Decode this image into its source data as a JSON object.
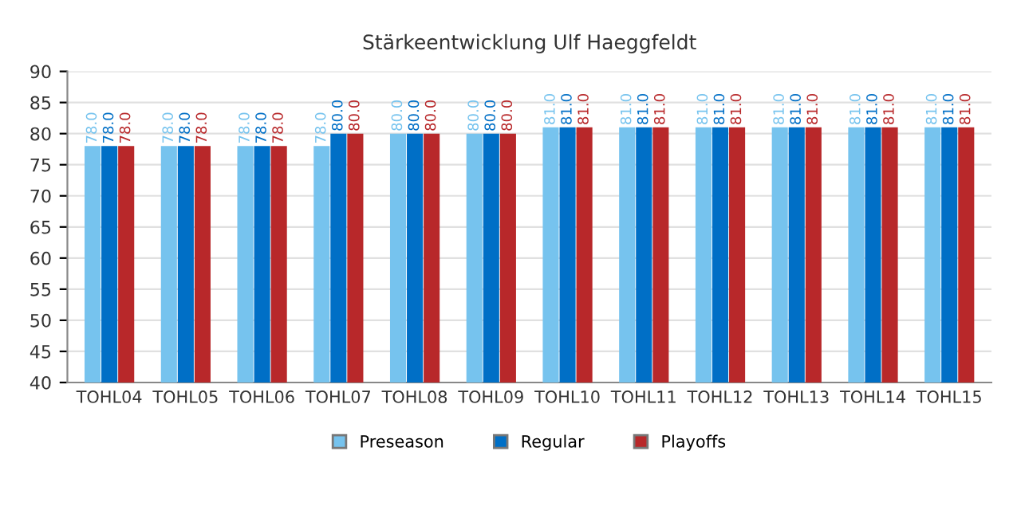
{
  "chart_data": {
    "type": "bar",
    "title": "Stärkeentwicklung Ulf Haeggfeldt",
    "categories": [
      "TOHL04",
      "TOHL05",
      "TOHL06",
      "TOHL07",
      "TOHL08",
      "TOHL09",
      "TOHL10",
      "TOHL11",
      "TOHL12",
      "TOHL13",
      "TOHL14",
      "TOHL15"
    ],
    "series": [
      {
        "name": "Preseason",
        "color": "#76c3ee",
        "values": [
          78,
          78,
          78,
          78,
          80,
          80,
          81,
          81,
          81,
          81,
          81,
          81
        ],
        "value_labels": [
          "78.0",
          "78.0",
          "78.0",
          "78.0",
          "80.0",
          "80.0",
          "81.0",
          "81.0",
          "81.0",
          "81.0",
          "81.0",
          "81.0"
        ]
      },
      {
        "name": "Regular",
        "color": "#006fc6",
        "values": [
          78,
          78,
          78,
          80,
          80,
          80,
          81,
          81,
          81,
          81,
          81,
          81
        ],
        "value_labels": [
          "78.0",
          "78.0",
          "78.0",
          "80.0",
          "80.0",
          "80.0",
          "81.0",
          "81.0",
          "81.0",
          "81.0",
          "81.0",
          "81.0"
        ]
      },
      {
        "name": "Playoffs",
        "color": "#b8282a",
        "values": [
          78,
          78,
          78,
          80,
          80,
          80,
          81,
          81,
          81,
          81,
          81,
          81
        ],
        "value_labels": [
          "78.0",
          "78.0",
          "78.0",
          "80.0",
          "80.0",
          "80.0",
          "81.0",
          "81.0",
          "81.0",
          "81.0",
          "81.0",
          "81.0"
        ]
      }
    ],
    "ylim": [
      40,
      90
    ],
    "yticks": [
      40,
      45,
      50,
      55,
      60,
      65,
      70,
      75,
      80,
      85,
      90
    ],
    "grid": "y",
    "legend": "bottom"
  }
}
